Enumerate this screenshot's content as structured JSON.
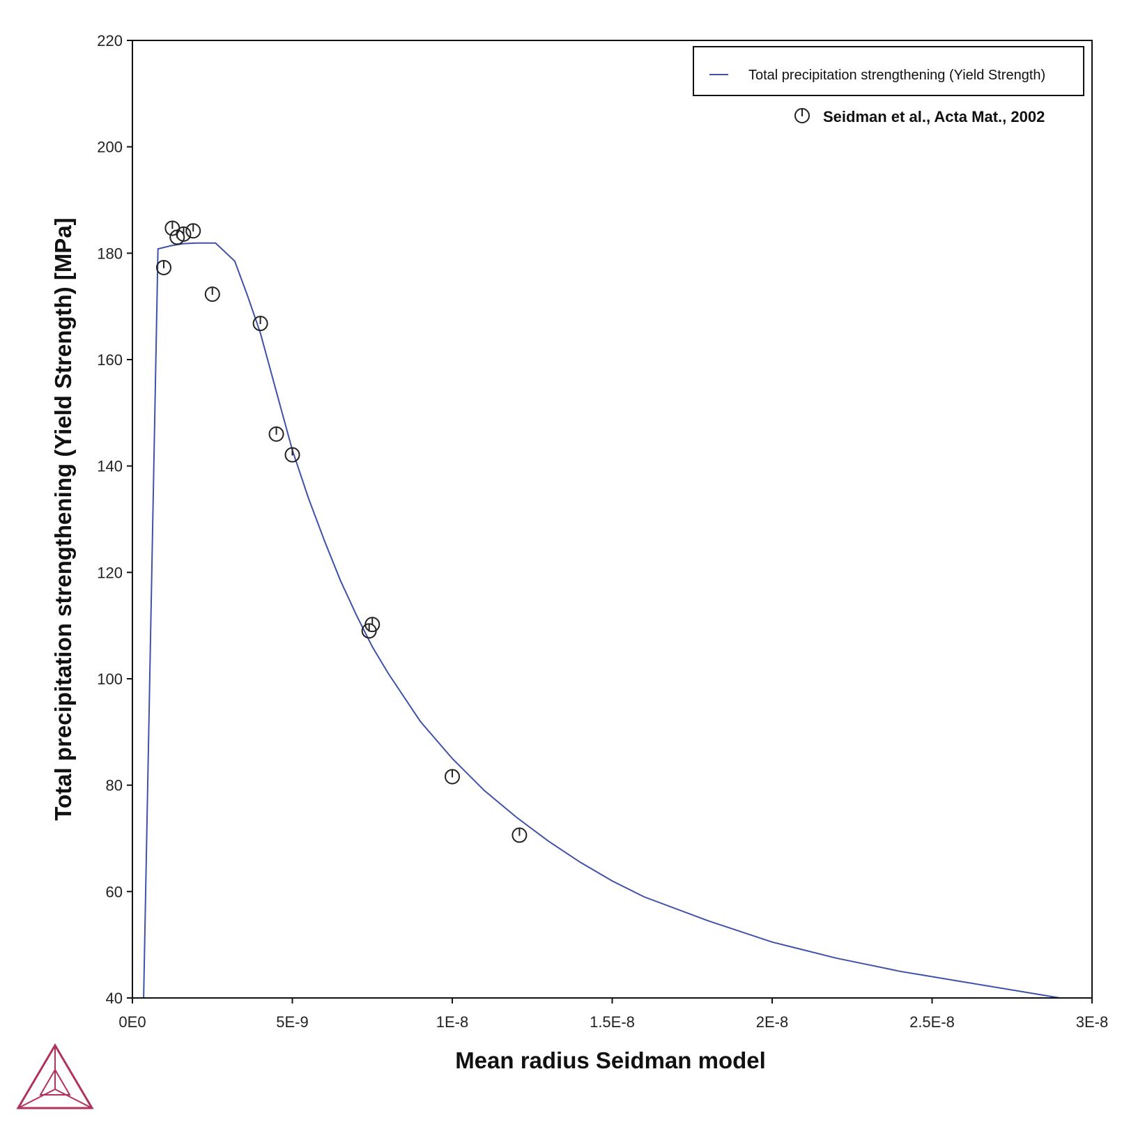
{
  "colors": {
    "series_line": "#3f51a8",
    "marker": "#222222",
    "logo": "#b0335a"
  },
  "icons": {
    "logo": "thermo-calc-triangle-logo"
  },
  "chart_data": {
    "type": "line",
    "xlabel": "Mean radius Seidman model",
    "ylabel": "Total precipitation strengthening (Yield Strength) [MPa]",
    "xlim": [
      0,
      3e-08
    ],
    "ylim": [
      40,
      220
    ],
    "x_ticks": [
      {
        "value": 0,
        "label": "0E0"
      },
      {
        "value": 5e-09,
        "label": "5E-9"
      },
      {
        "value": 1e-08,
        "label": "1E-8"
      },
      {
        "value": 1.5e-08,
        "label": "1.5E-8"
      },
      {
        "value": 2e-08,
        "label": "2E-8"
      },
      {
        "value": 2.5e-08,
        "label": "2.5E-8"
      },
      {
        "value": 3e-08,
        "label": "3E-8"
      }
    ],
    "y_ticks": [
      {
        "value": 40,
        "label": "40"
      },
      {
        "value": 60,
        "label": "60"
      },
      {
        "value": 80,
        "label": "80"
      },
      {
        "value": 100,
        "label": "100"
      },
      {
        "value": 120,
        "label": "120"
      },
      {
        "value": 140,
        "label": "140"
      },
      {
        "value": 160,
        "label": "160"
      },
      {
        "value": 180,
        "label": "180"
      },
      {
        "value": 200,
        "label": "200"
      },
      {
        "value": 220,
        "label": "220"
      }
    ],
    "grid": false,
    "legend_position": "top-right",
    "series": [
      {
        "name": "Total precipitation strengthening (Yield Strength)",
        "kind": "line",
        "x": [
          3.5e-10,
          8e-10,
          1.2e-09,
          1.6e-09,
          2e-09,
          2.6e-09,
          3.2e-09,
          3.6e-09,
          4e-09,
          4.5e-09,
          5e-09,
          5.5e-09,
          6e-09,
          6.5e-09,
          7e-09,
          7.5e-09,
          8e-09,
          9e-09,
          1e-08,
          1.1e-08,
          1.2e-08,
          1.3e-08,
          1.4e-08,
          1.5e-08,
          1.6e-08,
          1.8e-08,
          2e-08,
          2.2e-08,
          2.4e-08,
          2.6e-08,
          2.8e-08,
          2.9e-08
        ],
        "y": [
          40,
          180.8,
          181.4,
          181.8,
          181.9,
          181.9,
          178.5,
          172,
          165,
          154,
          143,
          134,
          126,
          118.5,
          112,
          106,
          101,
          92,
          85,
          79,
          74,
          69.5,
          65.5,
          62,
          59,
          54.5,
          50.5,
          47.5,
          45,
          43,
          41,
          40
        ]
      },
      {
        "name": "Seidman et al., Acta Mat., 2002",
        "kind": "scatter",
        "x": [
          9.8e-10,
          1.25e-09,
          1.4e-09,
          1.6e-09,
          1.9e-09,
          2.5e-09,
          4e-09,
          4.5e-09,
          5e-09,
          7.4e-09,
          7.5e-09,
          1e-08,
          1.21e-08
        ],
        "y": [
          177.3,
          184.7,
          183,
          183.6,
          184.2,
          172.3,
          166.8,
          146,
          142.1,
          109,
          110.2,
          81.6,
          70.6
        ]
      }
    ]
  }
}
